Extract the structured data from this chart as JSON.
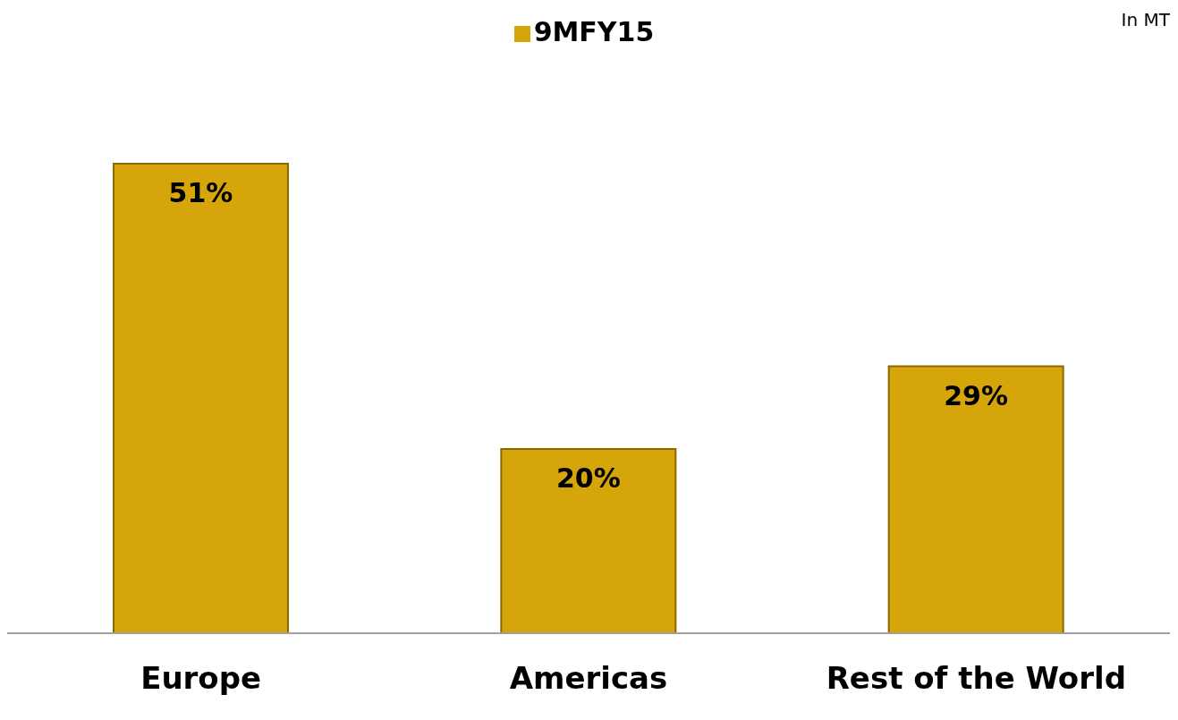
{
  "chart_data": {
    "type": "bar",
    "annotations": [
      "In MT"
    ],
    "categories": [
      "Europe",
      "Americas",
      "Rest of the World"
    ],
    "series": [
      {
        "name": "9MFY15",
        "color": "#d6a50a",
        "values": [
          51,
          20,
          29
        ],
        "value_labels": [
          "51%",
          "20%",
          "29%"
        ]
      }
    ],
    "legend": "top",
    "grid": false
  }
}
